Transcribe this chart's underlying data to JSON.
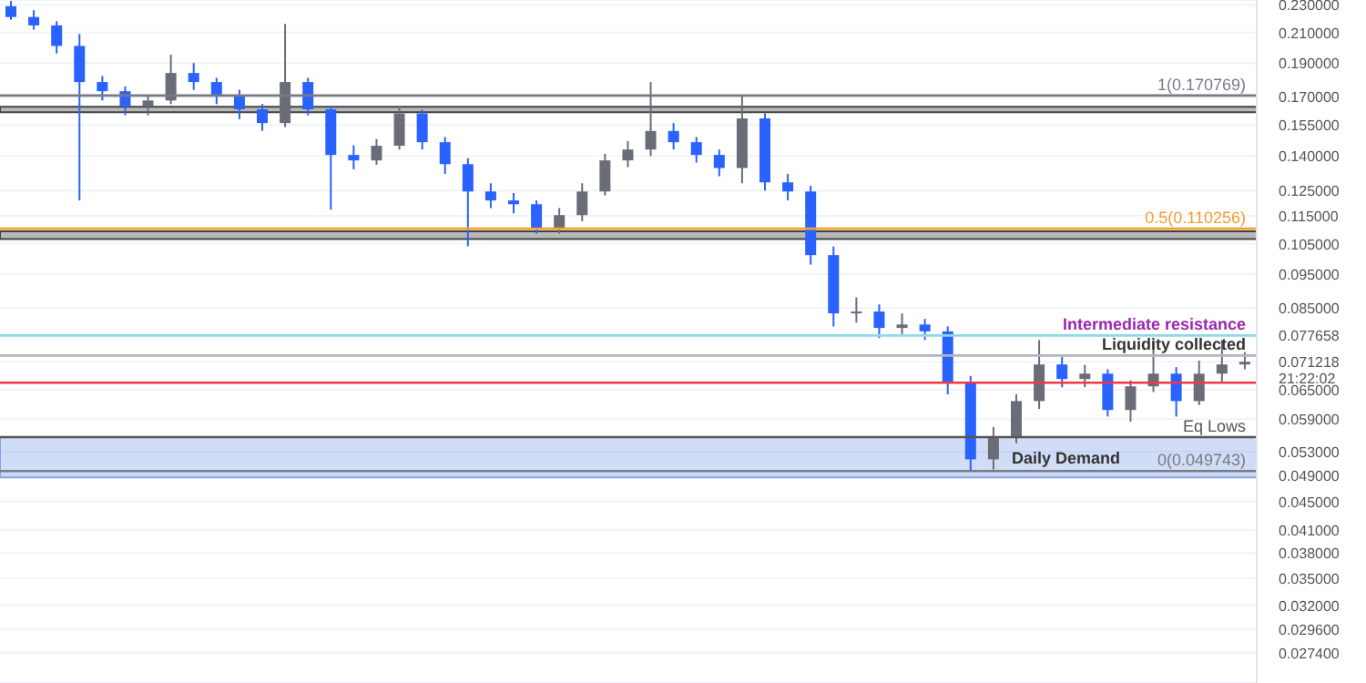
{
  "chart_data": {
    "type": "candlestick",
    "categories": [
      null,
      null,
      null,
      null,
      null,
      null,
      null,
      null,
      null,
      null,
      null,
      null,
      null,
      null,
      null,
      null,
      null,
      null,
      null,
      null,
      null,
      null,
      null,
      null,
      null,
      null,
      null,
      null,
      null,
      null,
      null,
      null,
      null,
      null,
      null,
      null,
      null,
      null,
      null,
      null,
      null,
      null,
      null,
      null,
      null,
      null,
      null,
      null,
      null,
      null,
      null,
      null,
      null,
      null,
      null
    ],
    "ylim": [
      0.0248,
      0.2337
    ],
    "log": "y",
    "grid": "y",
    "tick_labels": "y",
    "yticks": [
      {
        "value": 0.23,
        "label": "0.230000"
      },
      {
        "value": 0.21,
        "label": "0.210000"
      },
      {
        "value": 0.19,
        "label": "0.190000"
      },
      {
        "value": 0.17,
        "label": "0.170000"
      },
      {
        "value": 0.155,
        "label": "0.155000"
      },
      {
        "value": 0.14,
        "label": "0.140000"
      },
      {
        "value": 0.125,
        "label": "0.125000"
      },
      {
        "value": 0.115,
        "label": "0.115000"
      },
      {
        "value": 0.105,
        "label": "0.105000"
      },
      {
        "value": 0.095,
        "label": "0.095000"
      },
      {
        "value": 0.085,
        "label": "0.085000"
      },
      {
        "value": 0.077658,
        "label": "0.077658"
      },
      {
        "value": 0.071218,
        "label": "0.071218\n21:22:02"
      },
      {
        "value": 0.065,
        "label": "0.065000"
      },
      {
        "value": 0.059,
        "label": "0.059000"
      },
      {
        "value": 0.053,
        "label": "0.053000"
      },
      {
        "value": 0.049,
        "label": "0.049000"
      },
      {
        "value": 0.045,
        "label": "0.045000"
      },
      {
        "value": 0.041,
        "label": "0.041000"
      },
      {
        "value": 0.038,
        "label": "0.038000"
      },
      {
        "value": 0.035,
        "label": "0.035000"
      },
      {
        "value": 0.032,
        "label": "0.032000"
      },
      {
        "value": 0.0296,
        "label": "0.029600"
      },
      {
        "value": 0.0274,
        "label": "0.027400"
      }
    ],
    "ohlc": [
      [
        0.229,
        0.233,
        0.219,
        0.221
      ],
      [
        0.221,
        0.226,
        0.212,
        0.215
      ],
      [
        0.215,
        0.218,
        0.196,
        0.201
      ],
      [
        0.201,
        0.209,
        0.121,
        0.1785
      ],
      [
        0.1785,
        0.182,
        0.168,
        0.1732
      ],
      [
        0.1732,
        0.176,
        0.16,
        0.165
      ],
      [
        0.165,
        0.171,
        0.16,
        0.168
      ],
      [
        0.168,
        0.1953,
        0.166,
        0.1839
      ],
      [
        0.1839,
        0.19,
        0.174,
        0.1785
      ],
      [
        0.1785,
        0.181,
        0.166,
        0.171
      ],
      [
        0.171,
        0.174,
        0.158,
        0.1632
      ],
      [
        0.1632,
        0.166,
        0.152,
        0.156
      ],
      [
        0.156,
        0.216,
        0.154,
        0.1785
      ],
      [
        0.1785,
        0.181,
        0.16,
        0.1632
      ],
      [
        0.1632,
        0.165,
        0.1174,
        0.1405
      ],
      [
        0.1405,
        0.145,
        0.134,
        0.138
      ],
      [
        0.138,
        0.148,
        0.136,
        0.1448
      ],
      [
        0.1448,
        0.165,
        0.143,
        0.161
      ],
      [
        0.161,
        0.163,
        0.143,
        0.1465
      ],
      [
        0.1465,
        0.149,
        0.132,
        0.1363
      ],
      [
        0.1363,
        0.139,
        0.1041,
        0.1246
      ],
      [
        0.1246,
        0.128,
        0.118,
        0.121
      ],
      [
        0.121,
        0.124,
        0.116,
        0.1195
      ],
      [
        0.1195,
        0.121,
        0.1085,
        0.1106
      ],
      [
        0.1106,
        0.118,
        0.1085,
        0.1153
      ],
      [
        0.1153,
        0.128,
        0.113,
        0.1246
      ],
      [
        0.1246,
        0.141,
        0.123,
        0.138
      ],
      [
        0.138,
        0.147,
        0.135,
        0.143
      ],
      [
        0.143,
        0.1785,
        0.14,
        0.152
      ],
      [
        0.152,
        0.156,
        0.143,
        0.1465
      ],
      [
        0.1465,
        0.149,
        0.137,
        0.1405
      ],
      [
        0.1405,
        0.143,
        0.131,
        0.1346
      ],
      [
        0.1346,
        0.170769,
        0.128,
        0.1584
      ],
      [
        0.1584,
        0.161,
        0.125,
        0.1284
      ],
      [
        0.1284,
        0.132,
        0.121,
        0.1246
      ],
      [
        0.1246,
        0.127,
        0.098,
        0.1011
      ],
      [
        0.1011,
        0.104,
        0.08,
        0.0835
      ],
      [
        0.0835,
        0.088,
        0.081,
        0.084
      ],
      [
        0.084,
        0.086,
        0.077,
        0.0796
      ],
      [
        0.0796,
        0.0835,
        0.078,
        0.0805
      ],
      [
        0.0805,
        0.082,
        0.0765,
        0.0787
      ],
      [
        0.0787,
        0.08,
        0.064,
        0.0665
      ],
      [
        0.0665,
        0.068,
        0.0497,
        0.0517
      ],
      [
        0.0517,
        0.0575,
        0.05,
        0.0556
      ],
      [
        0.0556,
        0.064,
        0.0545,
        0.0626
      ],
      [
        0.0626,
        0.0765,
        0.061,
        0.0706
      ],
      [
        0.0706,
        0.0725,
        0.0655,
        0.0673
      ],
      [
        0.0673,
        0.0705,
        0.0655,
        0.0685
      ],
      [
        0.0685,
        0.0695,
        0.0595,
        0.0608
      ],
      [
        0.0608,
        0.067,
        0.0585,
        0.0657
      ],
      [
        0.0657,
        0.0765,
        0.0645,
        0.0685
      ],
      [
        0.0685,
        0.07,
        0.0595,
        0.0626
      ],
      [
        0.0626,
        0.0715,
        0.0618,
        0.0685
      ],
      [
        0.0685,
        0.0765,
        0.0665,
        0.0706
      ],
      [
        0.0706,
        0.0735,
        0.0695,
        0.071218
      ]
    ],
    "colors": [
      "#2962ff",
      "#2962ff",
      "#2962ff",
      "#2962ff",
      "#2962ff",
      "#2962ff",
      "#6a6d78",
      "#6a6d78",
      "#2962ff",
      "#2962ff",
      "#2962ff",
      "#2962ff",
      "#6a6d78",
      "#2962ff",
      "#2962ff",
      "#2962ff",
      "#6a6d78",
      "#6a6d78",
      "#2962ff",
      "#2962ff",
      "#2962ff",
      "#2962ff",
      "#2962ff",
      "#2962ff",
      "#6a6d78",
      "#6a6d78",
      "#6a6d78",
      "#6a6d78",
      "#6a6d78",
      "#2962ff",
      "#2962ff",
      "#2962ff",
      "#6a6d78",
      "#2962ff",
      "#2962ff",
      "#2962ff",
      "#2962ff",
      "#6a6d78",
      "#2962ff",
      "#6a6d78",
      "#2962ff",
      "#2962ff",
      "#2962ff",
      "#6a6d78",
      "#6a6d78",
      "#6a6d78",
      "#2962ff",
      "#6a6d78",
      "#2962ff",
      "#6a6d78",
      "#6a6d78",
      "#2962ff",
      "#6a6d78",
      "#6a6d78",
      "#6a6d78"
    ],
    "bands": [
      {
        "axis": "y",
        "from": 0.1617,
        "to": 0.1646,
        "color": "#333333"
      },
      {
        "axis": "y",
        "from": 0.1066,
        "to": 0.1093,
        "color": "#333333"
      },
      {
        "axis": "y",
        "from": 0.0487,
        "to": 0.0556,
        "label": "Daily Demand",
        "color": "#7b9be6"
      }
    ],
    "ref_lines": [
      {
        "axis": "y",
        "value": 0.170769,
        "label": "1(0.170769)",
        "color": "#787b86"
      },
      {
        "axis": "y",
        "value": 0.110256,
        "label": "0.5(0.110256)",
        "color": "#f0a030"
      },
      {
        "axis": "y",
        "value": 0.049743,
        "label": "0(0.049743)",
        "color": "#787b86"
      },
      {
        "axis": "y",
        "value": 0.077658,
        "label": "Intermediate resistance",
        "color": "#8fd8e8"
      },
      {
        "axis": "y",
        "value": 0.0727,
        "label": "Liquidity collected",
        "color": "#b2b5be"
      },
      {
        "axis": "y",
        "value": 0.0665,
        "color": "#f23645"
      },
      {
        "axis": "y",
        "value": 0.0556,
        "label": "Eq Lows",
        "color": "#555555"
      }
    ]
  }
}
